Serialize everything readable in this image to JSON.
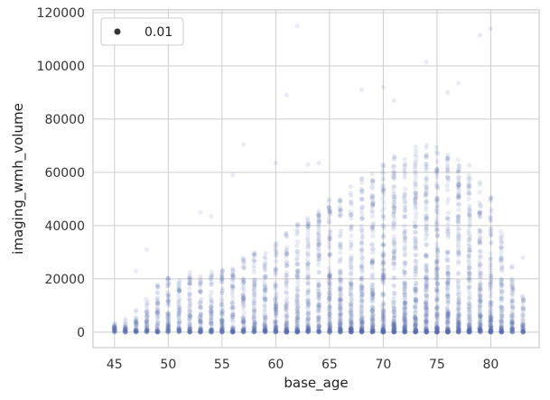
{
  "chart_data": {
    "type": "scatter",
    "title": "",
    "xlabel": "base_age",
    "ylabel": "imaging_wmh_volume",
    "xlim": [
      43,
      84.5
    ],
    "ylim": [
      -5800,
      121000
    ],
    "xticks": [
      45,
      50,
      55,
      60,
      65,
      70,
      75,
      80
    ],
    "yticks": [
      0,
      20000,
      40000,
      60000,
      80000,
      100000,
      120000
    ],
    "grid": true,
    "legend": {
      "position": "top-left",
      "entries": [
        {
          "label": "0.01",
          "marker": "circle",
          "color": "#333333"
        }
      ]
    },
    "point_color": "#5470b0",
    "point_opacity": 0.13,
    "x_range_of_ages": [
      45,
      83
    ],
    "highlight_outliers": [
      {
        "x": 62,
        "y": 115000
      },
      {
        "x": 79,
        "y": 111500
      },
      {
        "x": 80,
        "y": 114000
      },
      {
        "x": 74,
        "y": 101500
      },
      {
        "x": 61,
        "y": 89000
      },
      {
        "x": 68,
        "y": 91000
      },
      {
        "x": 70,
        "y": 92000
      },
      {
        "x": 76,
        "y": 90000
      },
      {
        "x": 77,
        "y": 93500
      },
      {
        "x": 71,
        "y": 87000
      },
      {
        "x": 57,
        "y": 70500
      },
      {
        "x": 60,
        "y": 63500
      },
      {
        "x": 63,
        "y": 63000
      },
      {
        "x": 64,
        "y": 63500
      },
      {
        "x": 56,
        "y": 59000
      },
      {
        "x": 53,
        "y": 45000
      },
      {
        "x": 54,
        "y": 43500
      },
      {
        "x": 48,
        "y": 31000
      },
      {
        "x": 47,
        "y": 23000
      },
      {
        "x": 83,
        "y": 28000
      }
    ],
    "age_distribution": [
      {
        "x": 45,
        "max": 3500
      },
      {
        "x": 46,
        "max": 5000
      },
      {
        "x": 47,
        "max": 9000
      },
      {
        "x": 48,
        "max": 13000
      },
      {
        "x": 49,
        "max": 18000
      },
      {
        "x": 50,
        "max": 22000
      },
      {
        "x": 51,
        "max": 20000
      },
      {
        "x": 52,
        "max": 24000
      },
      {
        "x": 53,
        "max": 22000
      },
      {
        "x": 54,
        "max": 23000
      },
      {
        "x": 55,
        "max": 25000
      },
      {
        "x": 56,
        "max": 26000
      },
      {
        "x": 57,
        "max": 28000
      },
      {
        "x": 58,
        "max": 30000
      },
      {
        "x": 59,
        "max": 32000
      },
      {
        "x": 60,
        "max": 35000
      },
      {
        "x": 61,
        "max": 38000
      },
      {
        "x": 62,
        "max": 42000
      },
      {
        "x": 63,
        "max": 44000
      },
      {
        "x": 64,
        "max": 46000
      },
      {
        "x": 65,
        "max": 50000
      },
      {
        "x": 66,
        "max": 52000
      },
      {
        "x": 67,
        "max": 55000
      },
      {
        "x": 68,
        "max": 58000
      },
      {
        "x": 69,
        "max": 60000
      },
      {
        "x": 70,
        "max": 64000
      },
      {
        "x": 71,
        "max": 66000
      },
      {
        "x": 72,
        "max": 68000
      },
      {
        "x": 73,
        "max": 70000
      },
      {
        "x": 74,
        "max": 72000
      },
      {
        "x": 75,
        "max": 70000
      },
      {
        "x": 76,
        "max": 68000
      },
      {
        "x": 77,
        "max": 66000
      },
      {
        "x": 78,
        "max": 64000
      },
      {
        "x": 79,
        "max": 58000
      },
      {
        "x": 80,
        "max": 52000
      },
      {
        "x": 81,
        "max": 40000
      },
      {
        "x": 82,
        "max": 25000
      },
      {
        "x": 83,
        "max": 15000
      }
    ]
  }
}
